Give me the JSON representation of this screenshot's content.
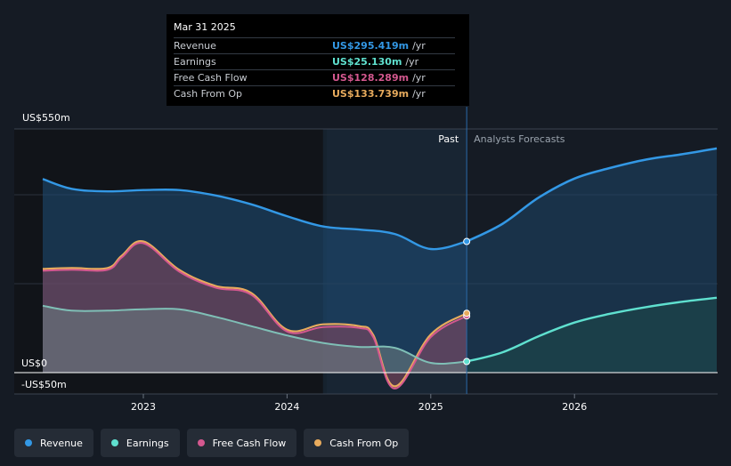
{
  "tooltip": {
    "date": "Mar 31 2025",
    "rows": [
      {
        "name": "Revenue",
        "value": "US$295.419m",
        "unit": "/yr"
      },
      {
        "name": "Earnings",
        "value": "US$25.130m",
        "unit": "/yr"
      },
      {
        "name": "Free Cash Flow",
        "value": "US$128.289m",
        "unit": "/yr"
      },
      {
        "name": "Cash From Op",
        "value": "US$133.739m",
        "unit": "/yr"
      }
    ]
  },
  "legend": [
    {
      "name": "Revenue"
    },
    {
      "name": "Earnings"
    },
    {
      "name": "Free Cash Flow"
    },
    {
      "name": "Cash From Op"
    }
  ],
  "colors": {
    "revenue": "#3398e5",
    "earnings": "#5fe0cf",
    "fcf": "#d4588f",
    "cfo": "#e8ab5d",
    "background": "#151b24",
    "tooltip_bg": "#000000"
  },
  "chart_data": {
    "type": "line",
    "title": "",
    "ylabel": "US$",
    "y_top_label": "US$550m",
    "y_zero_label": "US$0",
    "y_bottom_label": "-US$50m",
    "ylim": [
      -50,
      550
    ],
    "xlim": [
      2022.3,
      2026.99
    ],
    "x_ticks": [
      {
        "value": 2023,
        "label": "2023"
      },
      {
        "value": 2024,
        "label": "2024"
      },
      {
        "value": 2025,
        "label": "2025"
      },
      {
        "value": 2026,
        "label": "2026"
      }
    ],
    "past_label": "Past",
    "forecast_label": "Analysts Forecasts",
    "past_band_start": 2024.25,
    "divider_x": 2025.25,
    "series": [
      {
        "name": "Revenue",
        "key": "revenue",
        "fill": true,
        "points": [
          [
            2022.3,
            437
          ],
          [
            2022.5,
            415
          ],
          [
            2022.75,
            409
          ],
          [
            2023.0,
            412
          ],
          [
            2023.25,
            412
          ],
          [
            2023.5,
            400
          ],
          [
            2023.75,
            380
          ],
          [
            2024.0,
            353
          ],
          [
            2024.25,
            330
          ],
          [
            2024.5,
            323
          ],
          [
            2024.75,
            313
          ],
          [
            2025.0,
            279
          ],
          [
            2025.25,
            296
          ]
        ],
        "forecast": [
          [
            2025.25,
            296
          ],
          [
            2025.5,
            336
          ],
          [
            2025.75,
            395
          ],
          [
            2026.0,
            438
          ],
          [
            2026.25,
            462
          ],
          [
            2026.5,
            481
          ],
          [
            2026.75,
            493
          ],
          [
            2026.99,
            506
          ]
        ],
        "last_value": 295.419
      },
      {
        "name": "Earnings",
        "key": "earnings",
        "fill": true,
        "points": [
          [
            2022.3,
            151
          ],
          [
            2022.5,
            140
          ],
          [
            2022.75,
            140
          ],
          [
            2023.0,
            143
          ],
          [
            2023.25,
            143
          ],
          [
            2023.5,
            126
          ],
          [
            2023.75,
            105
          ],
          [
            2024.0,
            84
          ],
          [
            2024.25,
            67
          ],
          [
            2024.5,
            58
          ],
          [
            2024.75,
            56
          ],
          [
            2025.0,
            22
          ],
          [
            2025.25,
            25
          ]
        ],
        "forecast": [
          [
            2025.25,
            25
          ],
          [
            2025.5,
            46
          ],
          [
            2025.75,
            82
          ],
          [
            2026.0,
            113
          ],
          [
            2026.25,
            133
          ],
          [
            2026.5,
            148
          ],
          [
            2026.75,
            160
          ],
          [
            2026.99,
            169
          ]
        ],
        "last_value": 25.13
      },
      {
        "name": "Free Cash Flow",
        "key": "fcf",
        "fill": true,
        "points": [
          [
            2022.3,
            230
          ],
          [
            2022.5,
            232
          ],
          [
            2022.75,
            232
          ],
          [
            2022.85,
            260
          ],
          [
            2023.0,
            292
          ],
          [
            2023.25,
            228
          ],
          [
            2023.5,
            192
          ],
          [
            2023.75,
            176
          ],
          [
            2024.0,
            93
          ],
          [
            2024.25,
            103
          ],
          [
            2024.5,
            101
          ],
          [
            2024.6,
            80
          ],
          [
            2024.75,
            -36
          ],
          [
            2025.0,
            80
          ],
          [
            2025.25,
            128
          ]
        ],
        "last_value": 128.289
      },
      {
        "name": "Cash From Op",
        "key": "cfo",
        "fill": false,
        "points": [
          [
            2022.3,
            234
          ],
          [
            2022.5,
            236
          ],
          [
            2022.75,
            236
          ],
          [
            2022.85,
            264
          ],
          [
            2023.0,
            296
          ],
          [
            2023.25,
            232
          ],
          [
            2023.5,
            196
          ],
          [
            2023.75,
            180
          ],
          [
            2024.0,
            97
          ],
          [
            2024.25,
            109
          ],
          [
            2024.5,
            105
          ],
          [
            2024.6,
            85
          ],
          [
            2024.75,
            -31
          ],
          [
            2025.0,
            86
          ],
          [
            2025.25,
            134
          ]
        ],
        "last_value": 133.739
      }
    ]
  }
}
